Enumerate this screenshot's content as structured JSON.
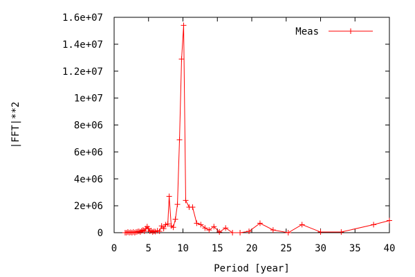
{
  "chart_data": {
    "type": "line",
    "title": "",
    "xlabel": "Period [year]",
    "ylabel": "|FFT|**2",
    "xlim": [
      0,
      40
    ],
    "ylim": [
      0,
      16000000
    ],
    "x_ticks": [
      0,
      5,
      10,
      15,
      20,
      25,
      30,
      35,
      40
    ],
    "x_tick_labels": [
      "0",
      "5",
      "10",
      "15",
      "20",
      "25",
      "30",
      "35",
      "40"
    ],
    "y_ticks": [
      0,
      2000000,
      4000000,
      6000000,
      8000000,
      10000000,
      12000000,
      14000000,
      16000000
    ],
    "y_tick_labels": [
      "0",
      "2e+06",
      "4e+06",
      "6e+06",
      "8e+06",
      "1e+07",
      "1.2e+07",
      "1.4e+07",
      "1.6e+07"
    ],
    "grid": false,
    "legend_position": "top-right",
    "series": [
      {
        "name": "Meas",
        "color": "#ff0000",
        "marker": "plus",
        "x": [
          1.6,
          1.8,
          2.0,
          2.2,
          2.4,
          2.6,
          2.8,
          3.0,
          3.2,
          3.4,
          3.6,
          3.8,
          4.0,
          4.2,
          4.4,
          4.6,
          4.8,
          5.0,
          5.2,
          5.4,
          5.6,
          5.8,
          6.0,
          6.3,
          6.6,
          6.9,
          7.2,
          7.5,
          7.8,
          8.0,
          8.3,
          8.6,
          8.9,
          9.2,
          9.5,
          9.8,
          10.1,
          10.4,
          10.9,
          11.4,
          12.0,
          12.6,
          13.2,
          13.8,
          14.5,
          15.3,
          16.2,
          17.2,
          18.3,
          19.6,
          21.2,
          23.1,
          25.3,
          27.3,
          30.0,
          33.0,
          37.7,
          40.0
        ],
        "y": [
          0,
          0,
          50000,
          0,
          30000,
          0,
          60000,
          0,
          50000,
          80000,
          100000,
          50000,
          150000,
          200000,
          100000,
          300000,
          450000,
          300000,
          100000,
          150000,
          50000,
          100000,
          80000,
          150000,
          100000,
          500000,
          300000,
          600000,
          650000,
          2700000,
          500000,
          400000,
          1000000,
          2100000,
          6900000,
          12900000,
          15400000,
          2400000,
          1900000,
          1900000,
          700000,
          600000,
          350000,
          200000,
          450000,
          50000,
          350000,
          0,
          0,
          100000,
          700000,
          200000,
          0,
          600000,
          50000,
          50000,
          600000,
          900000
        ]
      }
    ]
  }
}
